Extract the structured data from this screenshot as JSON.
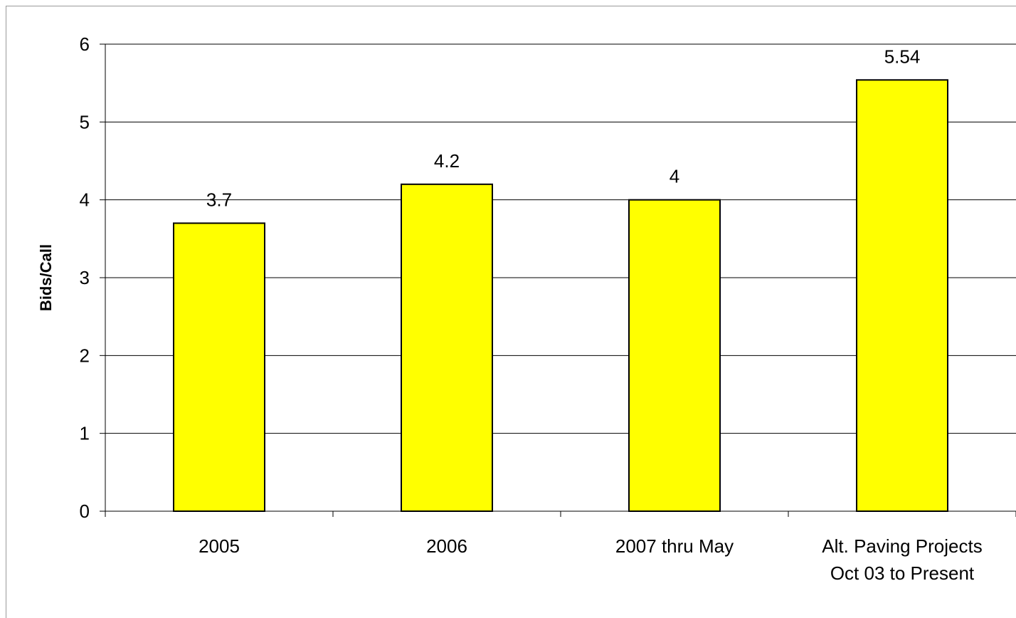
{
  "chart_data": {
    "type": "bar",
    "categories": [
      "2005",
      "2006",
      "2007 thru May",
      "Alt. Paving Projects\nOct 03 to Present"
    ],
    "values": [
      3.7,
      4.2,
      4,
      5.54
    ],
    "data_labels": [
      "3.7",
      "4.2",
      "4",
      "5.54"
    ],
    "title": "",
    "xlabel": "",
    "ylabel": "Bids/Call",
    "ylim": [
      0,
      6
    ],
    "yticks": [
      0,
      1,
      2,
      3,
      4,
      5,
      6
    ],
    "grid": true,
    "legend": "none",
    "bar_color": "#ffff00",
    "bar_edge_color": "#000000"
  }
}
